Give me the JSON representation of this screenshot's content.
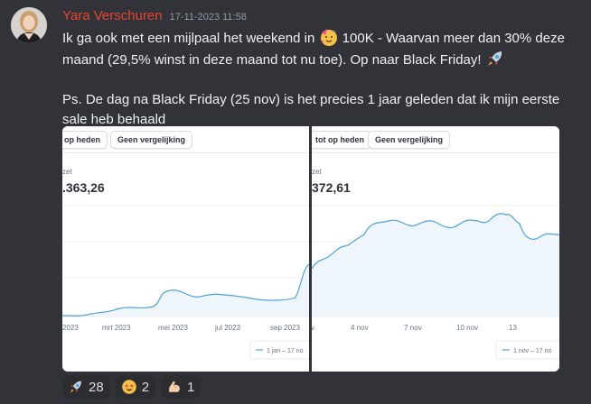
{
  "message": {
    "author": "Yara Verschuren",
    "timestamp": "17-11-2023 11:58",
    "line1_before": "Ik ga ook met een mijlpaal het weekend in ",
    "line1_after": " 100K - Waarvan meer dan 30% deze maand (29,5% winst in deze maand tot nu toe). Op naar Black Friday! ",
    "line2": "Ps. De dag na Black Friday (25 nov) is het precies 1 jaar geleden dat ik mijn eerste sale heb behaald",
    "inline_emojis": [
      "partying-face-icon",
      "rocket-icon"
    ]
  },
  "screenshot_left": {
    "pills": [
      "op heden",
      "Geen vergelijking"
    ],
    "label": "zet",
    "value": ".363,26",
    "x_ticks": [
      "2023",
      "mrt 2023",
      "mei 2023",
      "jul 2023",
      "sep 2023"
    ],
    "legend": "1 jan – 17 no"
  },
  "screenshot_right": {
    "pills": [
      "tot op heden",
      "Geen vergelijking"
    ],
    "label": "zet",
    "value": "372,61",
    "x_ticks": [
      "v",
      "4 nov",
      "7 nov",
      "10 nov",
      "13"
    ],
    "legend": "1 nov – 17 no"
  },
  "reactions": [
    {
      "emoji": "rocket-icon",
      "count": "28"
    },
    {
      "emoji": "star-struck-icon",
      "count": "2"
    },
    {
      "emoji": "flexed-biceps-icon",
      "count": "1"
    }
  ],
  "colors": {
    "background": "#313338",
    "username": "#e8442f",
    "timestamp": "#949ba4",
    "chart_line": "#4aa3df",
    "reaction_bg": "#2b2d31"
  }
}
